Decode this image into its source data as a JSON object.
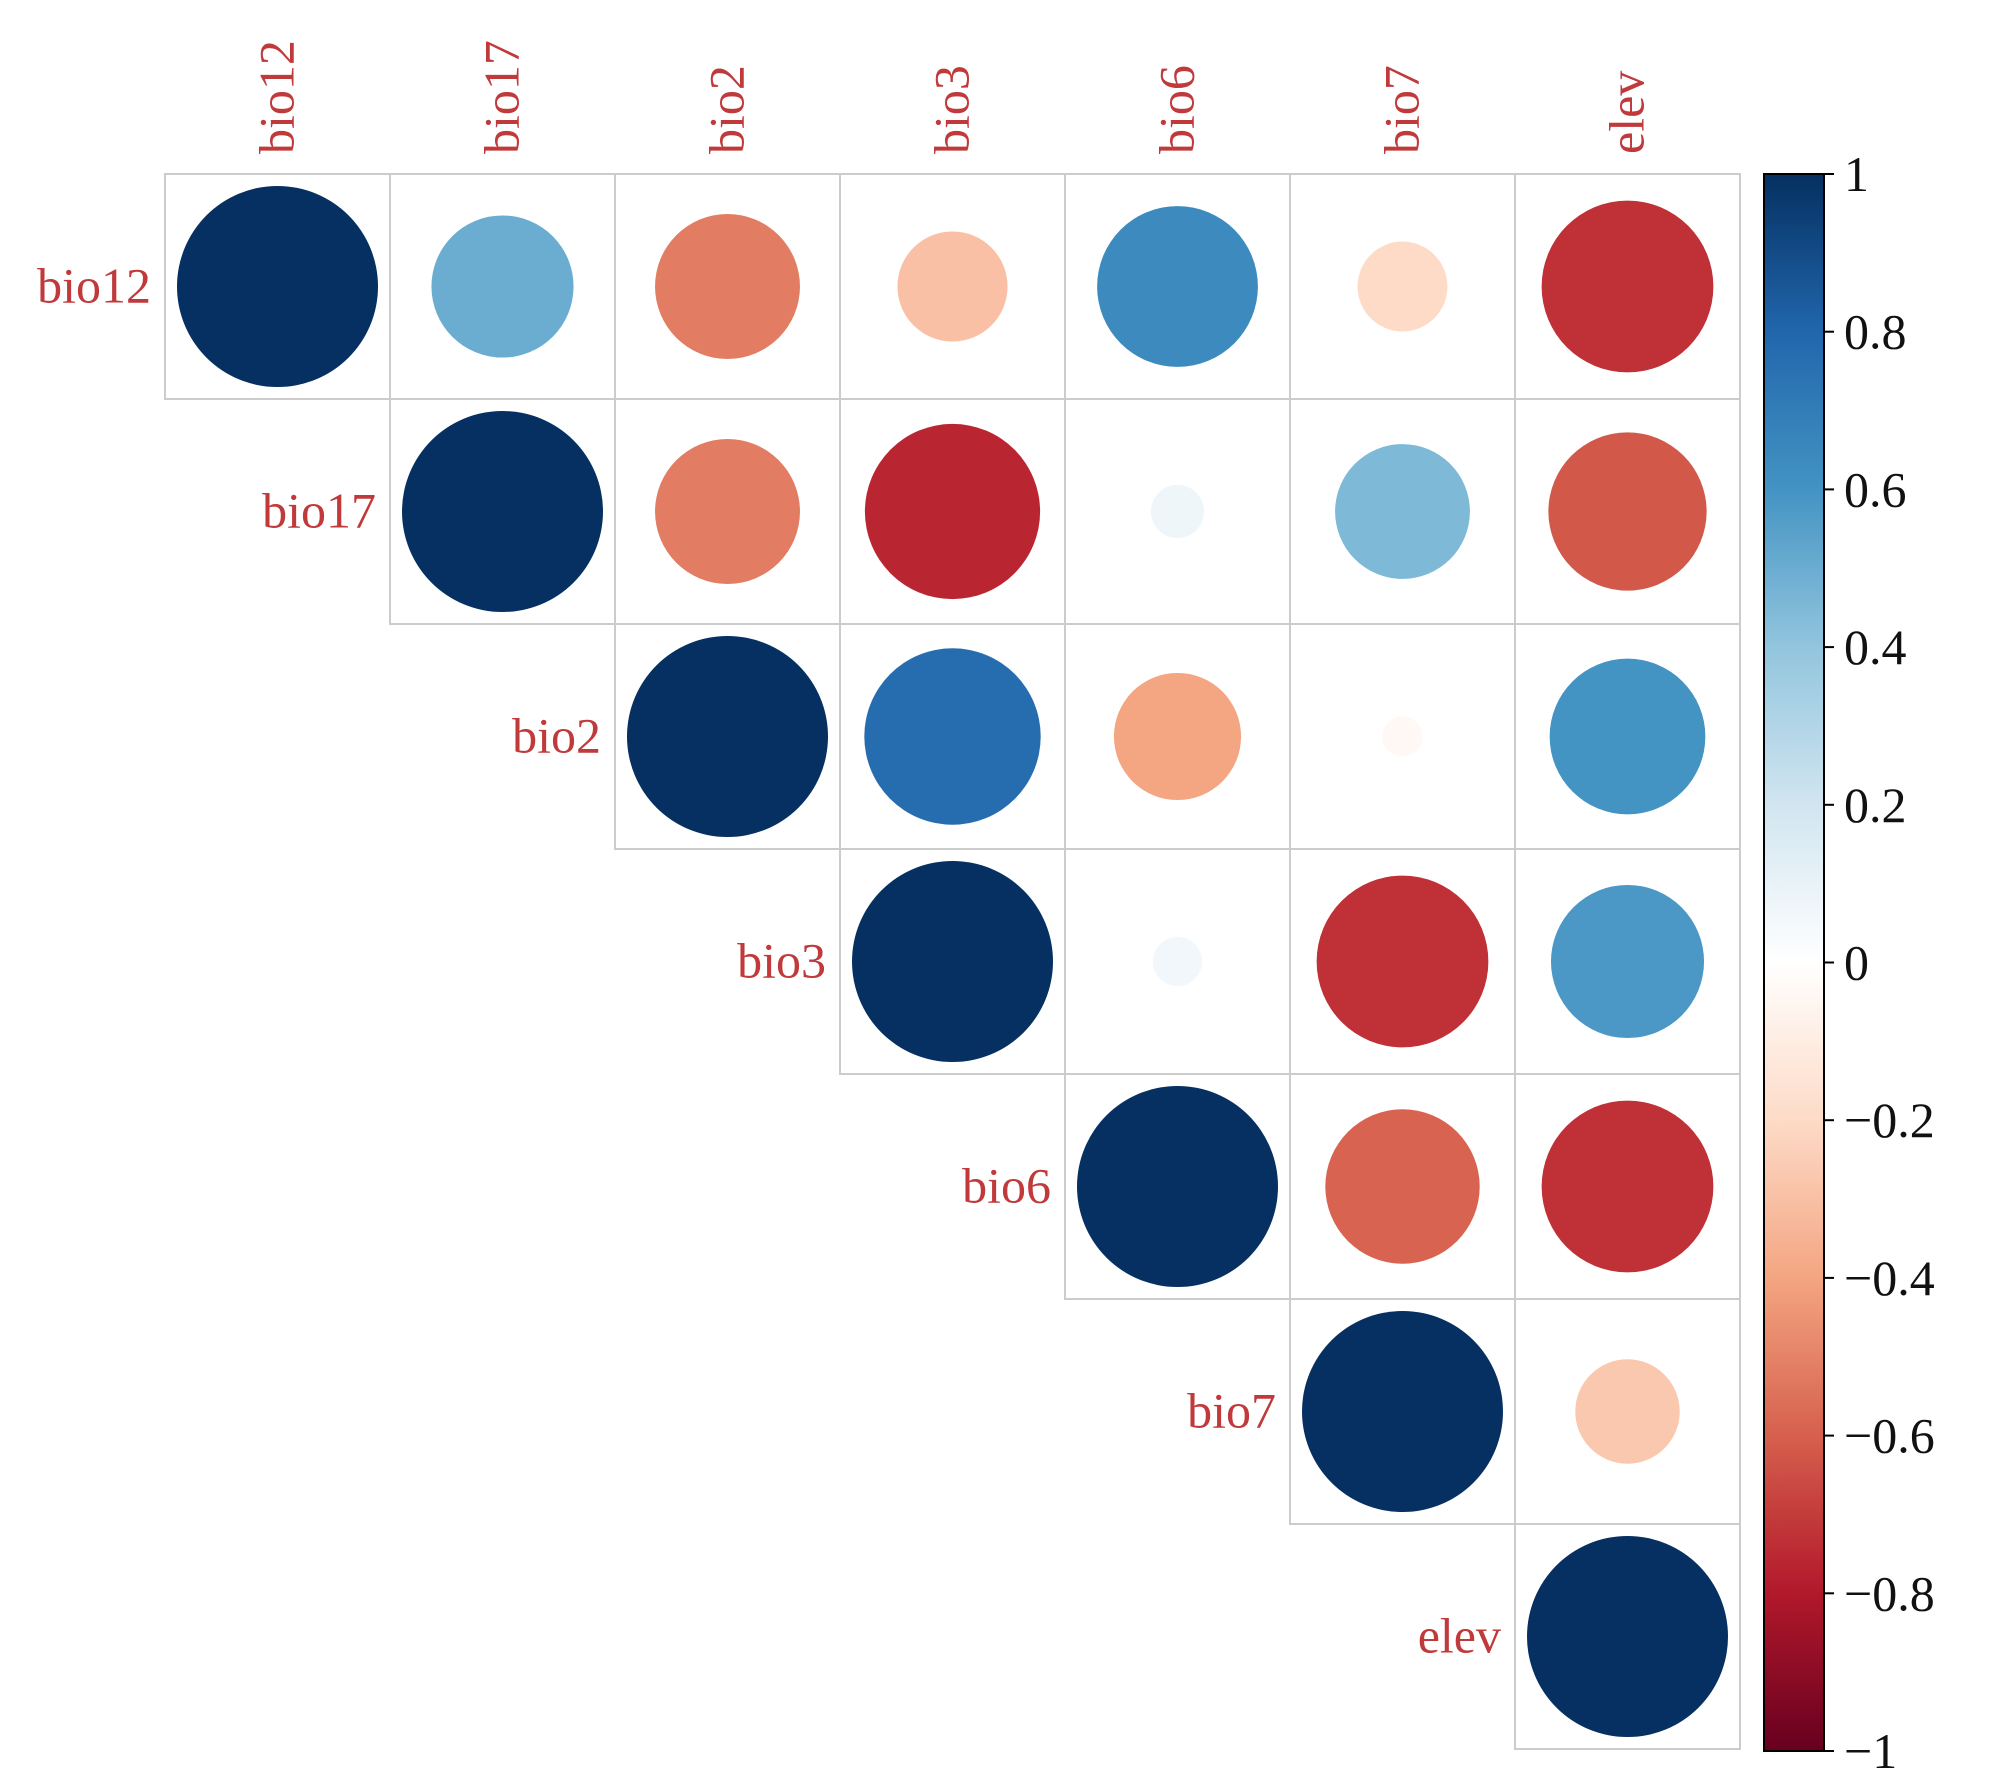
{
  "chart_data": {
    "type": "heatmap",
    "subtype": "correlation-circle-upper",
    "variables": [
      "bio12",
      "bio17",
      "bio2",
      "bio3",
      "bio6",
      "bio7",
      "elev"
    ],
    "matrix": [
      [
        1.0,
        0.5,
        -0.52,
        -0.3,
        0.64,
        -0.2,
        -0.73
      ],
      [
        0.5,
        1.0,
        -0.52,
        -0.76,
        0.07,
        0.45,
        -0.62
      ],
      [
        -0.52,
        -0.52,
        1.0,
        0.77,
        -0.4,
        -0.04,
        0.6
      ],
      [
        -0.3,
        -0.76,
        0.77,
        1.0,
        0.06,
        -0.73,
        0.58
      ],
      [
        0.64,
        0.07,
        -0.4,
        0.06,
        1.0,
        -0.59,
        -0.73
      ],
      [
        -0.2,
        0.45,
        -0.04,
        -0.73,
        -0.59,
        1.0,
        -0.27
      ],
      [
        -0.73,
        -0.62,
        0.6,
        0.58,
        -0.73,
        -0.27,
        1.0
      ]
    ],
    "colorbar": {
      "min": -1,
      "max": 1,
      "ticks": [
        "1",
        "0.8",
        "0.6",
        "0.4",
        "0.2",
        "0",
        "−0.2",
        "−0.4",
        "−0.6",
        "−0.8",
        "−1"
      ],
      "tick_values": [
        1,
        0.8,
        0.6,
        0.4,
        0.2,
        0,
        -0.2,
        -0.4,
        -0.6,
        -0.8,
        -1
      ]
    },
    "colormap": [
      "#67001F",
      "#B2182B",
      "#D6604D",
      "#F4A582",
      "#FDDBC7",
      "#FFFFFF",
      "#D1E5F0",
      "#92C5DE",
      "#4393C3",
      "#2166AC",
      "#053061"
    ],
    "label_color": "#C0393B",
    "grid_color": "#CCCCCC"
  }
}
